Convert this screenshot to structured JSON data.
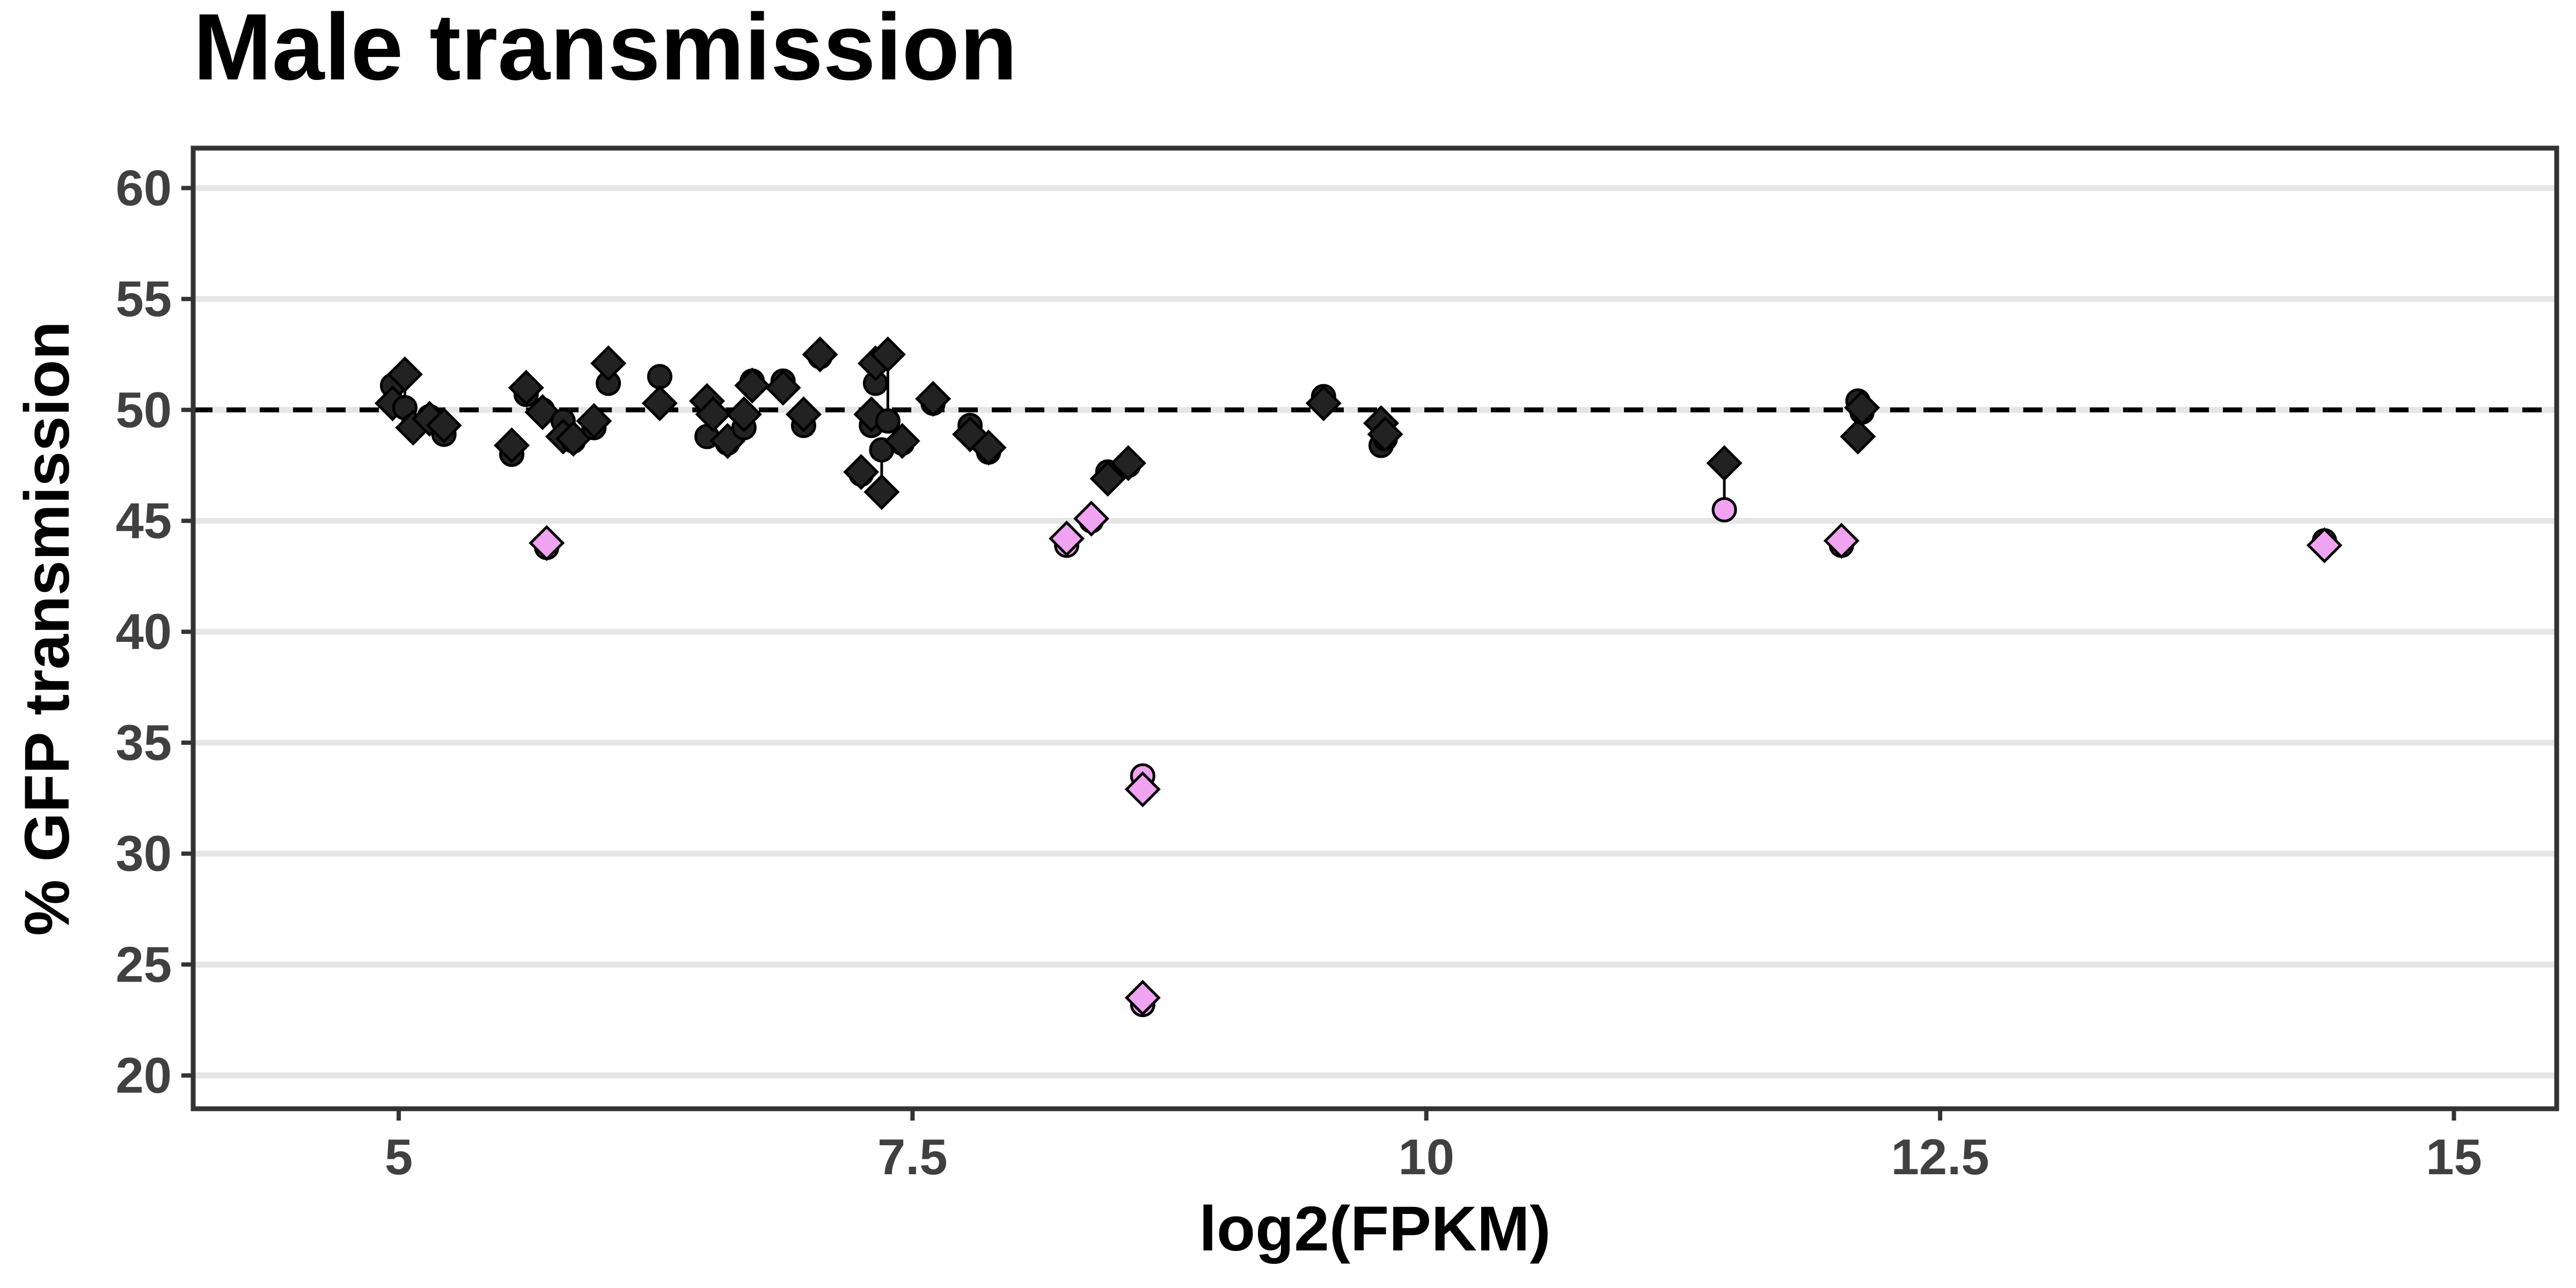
{
  "chart_data": {
    "type": "scatter",
    "title": "Male transmission",
    "xlabel": "log2(FPKM)",
    "ylabel": "% GFP transmission",
    "xlim": [
      4.0,
      15.5
    ],
    "ylim": [
      18.5,
      61.8
    ],
    "xticks": [
      5,
      7.5,
      10,
      12.5,
      15
    ],
    "xtick_labels": [
      "5",
      "7.5",
      "10",
      "12.5",
      "15"
    ],
    "yticks": [
      20,
      25,
      30,
      35,
      40,
      45,
      50,
      55,
      60
    ],
    "ytick_labels": [
      "20",
      "25",
      "30",
      "35",
      "40",
      "45",
      "50",
      "55",
      "60"
    ],
    "grid": "horizontal",
    "reference_line": {
      "y": 50,
      "style": "dashed"
    },
    "colors": {
      "normal": "#222222",
      "reduced": "#f0a3f0",
      "edge": "#000000",
      "grid": "#e6e6e6",
      "frame": "#333333"
    },
    "pairs": [
      {
        "x": 4.97,
        "circle": 51.1,
        "diamond": 50.3,
        "color": "normal"
      },
      {
        "x": 5.03,
        "circle": 50.1,
        "diamond": 51.6,
        "color": "normal"
      },
      {
        "x": 5.07,
        "circle": 49.3,
        "diamond": 49.2,
        "color": "normal"
      },
      {
        "x": 5.15,
        "circle": 49.7,
        "diamond": 49.6,
        "color": "normal"
      },
      {
        "x": 5.22,
        "circle": 48.9,
        "diamond": 49.3,
        "color": "normal"
      },
      {
        "x": 5.55,
        "circle": 48.0,
        "diamond": 48.4,
        "color": "normal"
      },
      {
        "x": 5.62,
        "circle": 50.7,
        "diamond": 51.0,
        "color": "normal"
      },
      {
        "x": 5.72,
        "circle": 43.8,
        "diamond": 44.0,
        "color": "reduced"
      },
      {
        "x": 5.7,
        "circle": 50.0,
        "diamond": 49.9,
        "color": "normal"
      },
      {
        "x": 5.8,
        "circle": 49.5,
        "diamond": 48.8,
        "color": "normal"
      },
      {
        "x": 5.85,
        "circle": 48.6,
        "diamond": 48.7,
        "color": "normal"
      },
      {
        "x": 5.95,
        "circle": 49.2,
        "diamond": 49.5,
        "color": "normal"
      },
      {
        "x": 6.02,
        "circle": 51.2,
        "diamond": 52.1,
        "color": "normal"
      },
      {
        "x": 6.27,
        "circle": 51.5,
        "diamond": 50.3,
        "color": "normal"
      },
      {
        "x": 6.5,
        "circle": 48.8,
        "diamond": 50.4,
        "color": "normal"
      },
      {
        "x": 6.53,
        "circle": 49.8,
        "diamond": 49.8,
        "color": "normal"
      },
      {
        "x": 6.6,
        "circle": 48.5,
        "diamond": 48.6,
        "color": "normal"
      },
      {
        "x": 6.68,
        "circle": 49.2,
        "diamond": 49.8,
        "color": "normal"
      },
      {
        "x": 6.72,
        "circle": 51.3,
        "diamond": 51.1,
        "color": "normal"
      },
      {
        "x": 6.87,
        "circle": 51.3,
        "diamond": 51.0,
        "color": "normal"
      },
      {
        "x": 6.97,
        "circle": 49.3,
        "diamond": 49.8,
        "color": "normal"
      },
      {
        "x": 7.05,
        "circle": 52.4,
        "diamond": 52.5,
        "color": "normal"
      },
      {
        "x": 7.25,
        "circle": 47.1,
        "diamond": 47.2,
        "color": "normal"
      },
      {
        "x": 7.3,
        "circle": 49.3,
        "diamond": 49.8,
        "color": "normal"
      },
      {
        "x": 7.32,
        "circle": 51.2,
        "diamond": 52.1,
        "color": "normal"
      },
      {
        "x": 7.35,
        "circle": 48.2,
        "diamond": 46.3,
        "color": "normal"
      },
      {
        "x": 7.38,
        "circle": 49.5,
        "diamond": 52.5,
        "color": "normal"
      },
      {
        "x": 7.45,
        "circle": 48.5,
        "diamond": 48.6,
        "color": "normal"
      },
      {
        "x": 7.6,
        "circle": 50.3,
        "diamond": 50.5,
        "color": "normal"
      },
      {
        "x": 7.78,
        "circle": 49.3,
        "diamond": 48.9,
        "color": "normal"
      },
      {
        "x": 7.87,
        "circle": 48.1,
        "diamond": 48.3,
        "color": "normal"
      },
      {
        "x": 8.25,
        "circle": 43.9,
        "diamond": 44.2,
        "color": "reduced"
      },
      {
        "x": 8.37,
        "circle": 45.0,
        "diamond": 45.1,
        "color": "reduced"
      },
      {
        "x": 8.45,
        "circle": 47.2,
        "diamond": 46.9,
        "color": "normal"
      },
      {
        "x": 8.55,
        "circle": 47.5,
        "diamond": 47.6,
        "color": "normal"
      },
      {
        "x": 8.62,
        "circle": 33.5,
        "diamond": 32.9,
        "color": "reduced"
      },
      {
        "x": 8.62,
        "circle": 23.2,
        "diamond": 23.5,
        "color": "reduced"
      },
      {
        "x": 9.5,
        "circle": 50.6,
        "diamond": 50.3,
        "color": "normal"
      },
      {
        "x": 9.78,
        "circle": 48.4,
        "diamond": 49.4,
        "color": "normal"
      },
      {
        "x": 9.8,
        "circle": 48.7,
        "diamond": 48.9,
        "color": "normal"
      },
      {
        "x": 11.45,
        "circle": 45.5,
        "diamond": 47.6,
        "color": "reduced_circle"
      },
      {
        "x": 12.02,
        "circle": 43.9,
        "diamond": 44.1,
        "color": "reduced"
      },
      {
        "x": 12.1,
        "circle": 50.4,
        "diamond": 48.8,
        "color": "normal"
      },
      {
        "x": 12.12,
        "circle": 49.9,
        "diamond": 50.1,
        "color": "normal"
      },
      {
        "x": 14.37,
        "circle": 44.1,
        "diamond": 43.9,
        "color": "reduced"
      }
    ]
  }
}
